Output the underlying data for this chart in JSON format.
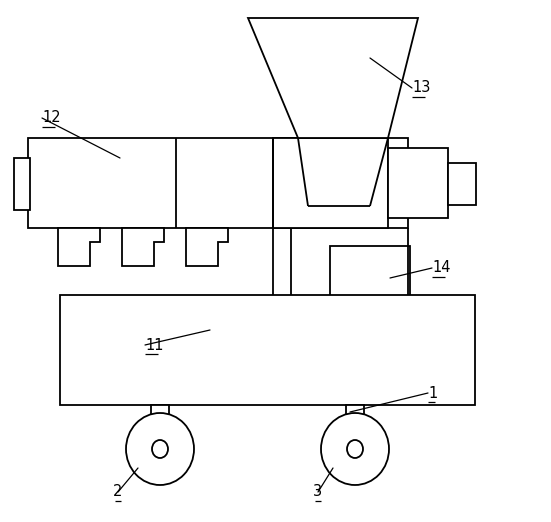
{
  "bg_color": "#ffffff",
  "lc": "#000000",
  "lw": 1.3,
  "fig_w": 5.51,
  "fig_h": 5.22,
  "dpi": 100
}
